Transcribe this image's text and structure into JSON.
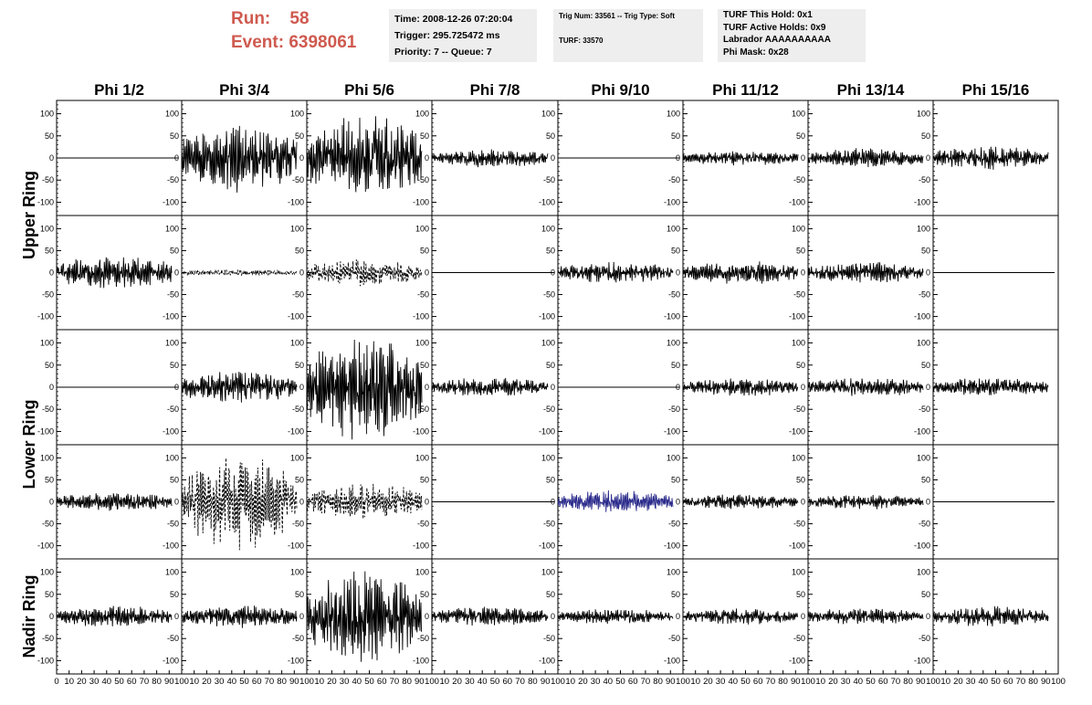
{
  "header": {
    "run_label": "Run:",
    "run_value": "58",
    "event_label": "Event:",
    "event_value": "6398061"
  },
  "info_box_1": {
    "time": "Time: 2008-12-26 07:20:04",
    "trigger": "Trigger: 295.725472 ms",
    "priority": "Priority: 7 -- Queue: 7"
  },
  "info_box_2": {
    "trig": "Trig Num: 33561 -- Trig Type: Soft",
    "turf": "TURF: 33570"
  },
  "info_box_3": {
    "hold": "TURF This Hold: 0x1",
    "active": "TURF Active Holds: 0x9",
    "labrador": "Labrador AAAAAAAAAA",
    "phimask": "Phi Mask: 0x28"
  },
  "colors": {
    "trace": "#000000",
    "highlight_trace": "#2b2b8c",
    "title_red": "#cf5a4f",
    "info_bg": "#eeeeee"
  },
  "chart_data": {
    "type": "line",
    "columns": [
      "Phi 1/2",
      "Phi 3/4",
      "Phi 5/6",
      "Phi 7/8",
      "Phi 9/10",
      "Phi 11/12",
      "Phi 13/14",
      "Phi 15/16"
    ],
    "ring_labels": [
      "Upper Ring",
      "Lower Ring",
      "Nadir Ring"
    ],
    "y_ticks": [
      100,
      50,
      0,
      -50,
      -100
    ],
    "x_tick_labels": [
      "0",
      "10",
      "20",
      "30",
      "40",
      "50",
      "60",
      "70",
      "80",
      "90",
      "100"
    ],
    "xlim": [
      0,
      100
    ],
    "ylim": [
      -130,
      130
    ],
    "panels": [
      [
        {
          "a": 0,
          "s": "flat"
        },
        {
          "a": 65,
          "s": "solid"
        },
        {
          "a": 80,
          "s": "solid"
        },
        {
          "a": 18,
          "s": "solid"
        },
        {
          "a": 0,
          "s": "flat"
        },
        {
          "a": 14,
          "s": "solid"
        },
        {
          "a": 18,
          "s": "solid"
        },
        {
          "a": 22,
          "s": "solid"
        }
      ],
      [
        {
          "a": 32,
          "s": "solid"
        },
        {
          "a": 6,
          "s": "dashed"
        },
        {
          "a": 25,
          "s": "dashed"
        },
        {
          "a": 0,
          "s": "flat"
        },
        {
          "a": 20,
          "s": "solid"
        },
        {
          "a": 22,
          "s": "solid"
        },
        {
          "a": 20,
          "s": "solid"
        },
        {
          "a": 0,
          "s": "flat"
        }
      ],
      [
        {
          "a": 0,
          "s": "flat"
        },
        {
          "a": 30,
          "s": "solid"
        },
        {
          "a": 100,
          "s": "solid"
        },
        {
          "a": 18,
          "s": "solid"
        },
        {
          "a": 0,
          "s": "flat"
        },
        {
          "a": 17,
          "s": "solid"
        },
        {
          "a": 18,
          "s": "solid"
        },
        {
          "a": 18,
          "s": "solid"
        }
      ],
      [
        {
          "a": 18,
          "s": "solid"
        },
        {
          "a": 90,
          "s": "dashed"
        },
        {
          "a": 35,
          "s": "dashed"
        },
        {
          "a": 0,
          "s": "flat"
        },
        {
          "a": 22,
          "s": "blue"
        },
        {
          "a": 14,
          "s": "solid"
        },
        {
          "a": 14,
          "s": "solid"
        },
        {
          "a": 0,
          "s": "flat"
        }
      ],
      [
        {
          "a": 20,
          "s": "solid"
        },
        {
          "a": 22,
          "s": "solid"
        },
        {
          "a": 85,
          "s": "solid"
        },
        {
          "a": 18,
          "s": "solid"
        },
        {
          "a": 14,
          "s": "solid"
        },
        {
          "a": 15,
          "s": "solid"
        },
        {
          "a": 16,
          "s": "solid"
        },
        {
          "a": 20,
          "s": "solid"
        }
      ]
    ]
  }
}
